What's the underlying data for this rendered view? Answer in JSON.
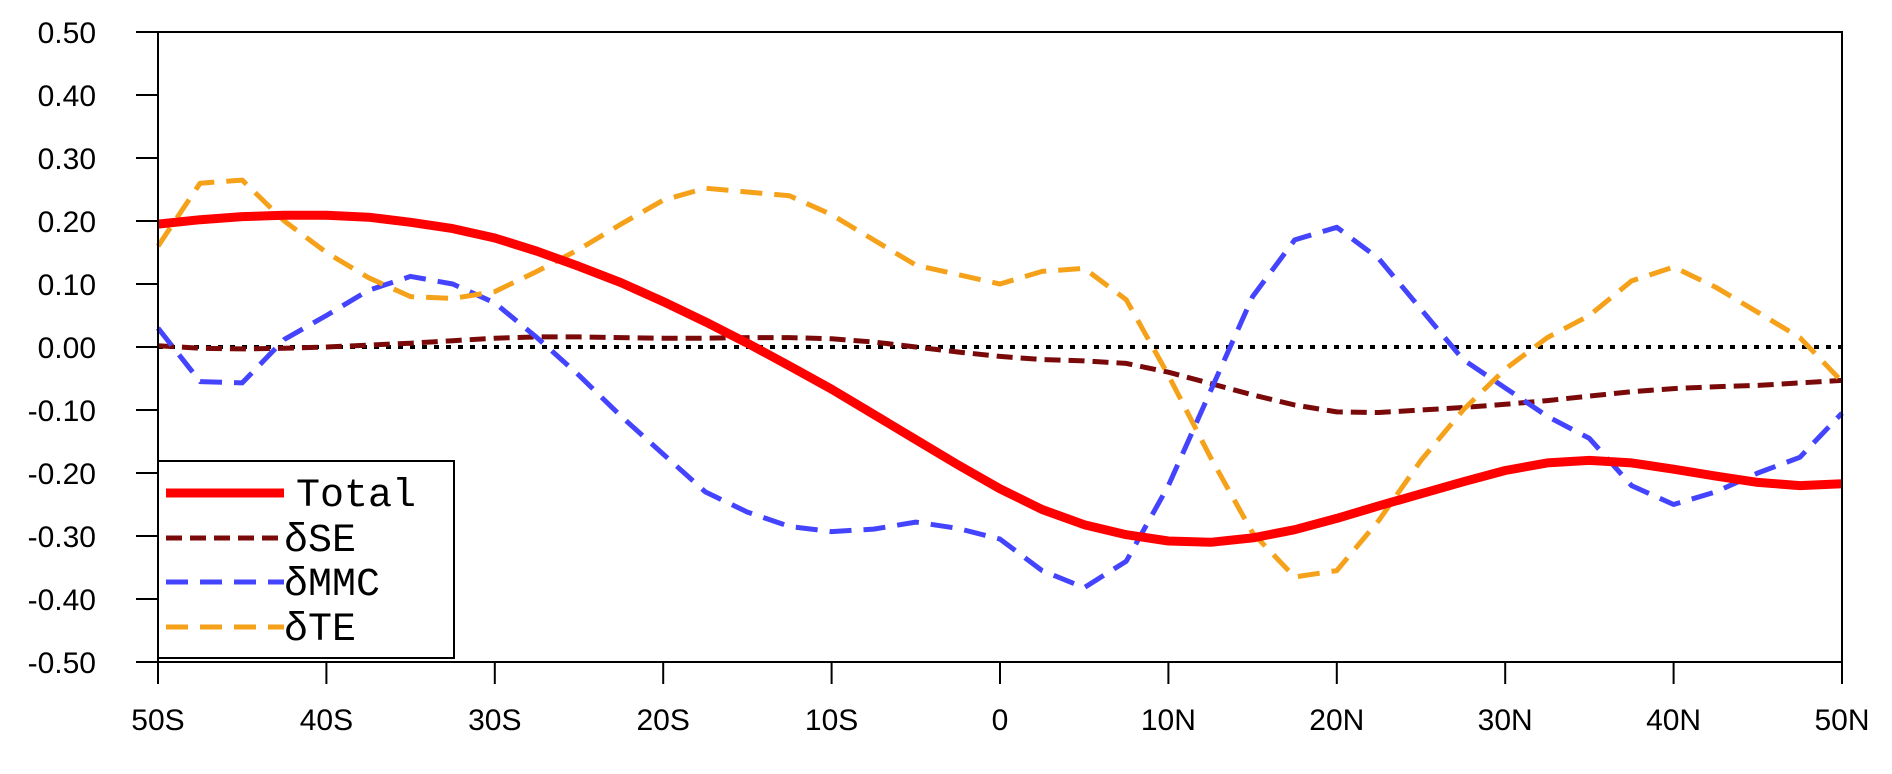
{
  "chart_data": {
    "type": "line",
    "title": "",
    "xlabel": "",
    "ylabel": "",
    "xlim": [
      -50,
      50
    ],
    "ylim": [
      -0.5,
      0.5
    ],
    "x_ticks": [
      {
        "value": -50,
        "label": "50S"
      },
      {
        "value": -40,
        "label": "40S"
      },
      {
        "value": -30,
        "label": "30S"
      },
      {
        "value": -20,
        "label": "20S"
      },
      {
        "value": -10,
        "label": "10S"
      },
      {
        "value": 0,
        "label": "0"
      },
      {
        "value": 10,
        "label": "10N"
      },
      {
        "value": 20,
        "label": "20N"
      },
      {
        "value": 30,
        "label": "30N"
      },
      {
        "value": 40,
        "label": "40N"
      },
      {
        "value": 50,
        "label": "50N"
      }
    ],
    "y_ticks": [
      {
        "value": 0.5,
        "label": "0.50"
      },
      {
        "value": 0.4,
        "label": "0.40"
      },
      {
        "value": 0.3,
        "label": "0.30"
      },
      {
        "value": 0.2,
        "label": "0.20"
      },
      {
        "value": 0.1,
        "label": "0.10"
      },
      {
        "value": 0.0,
        "label": "0.00"
      },
      {
        "value": -0.1,
        "label": "-0.10"
      },
      {
        "value": -0.2,
        "label": "-0.20"
      },
      {
        "value": -0.3,
        "label": "-0.30"
      },
      {
        "value": -0.4,
        "label": "-0.40"
      },
      {
        "value": -0.5,
        "label": "-0.50"
      }
    ],
    "zero_line": {
      "y": 0,
      "color": "#000000",
      "style": "dotted"
    },
    "legend": {
      "placement": "bottom-left"
    },
    "x": [
      -50,
      -47.5,
      -45,
      -42.5,
      -40,
      -37.5,
      -35,
      -32.5,
      -30,
      -27.5,
      -25,
      -22.5,
      -20,
      -17.5,
      -15,
      -12.5,
      -10,
      -7.5,
      -5,
      -2.5,
      0,
      2.5,
      5,
      7.5,
      10,
      12.5,
      15,
      17.5,
      20,
      22.5,
      25,
      27.5,
      30,
      32.5,
      35,
      37.5,
      40,
      42.5,
      45,
      47.5,
      50
    ],
    "series": [
      {
        "name": "Total",
        "color": "#ff0000",
        "style": "solid",
        "values": [
          0.195,
          0.202,
          0.207,
          0.209,
          0.209,
          0.206,
          0.198,
          0.188,
          0.173,
          0.152,
          0.128,
          0.102,
          0.072,
          0.04,
          0.006,
          -0.03,
          -0.067,
          -0.107,
          -0.147,
          -0.187,
          -0.225,
          -0.258,
          -0.282,
          -0.298,
          -0.308,
          -0.31,
          -0.303,
          -0.29,
          -0.272,
          -0.252,
          -0.233,
          -0.214,
          -0.196,
          -0.184,
          -0.18,
          -0.184,
          -0.194,
          -0.205,
          -0.215,
          -0.22,
          -0.217
        ]
      },
      {
        "name": "δSE",
        "color": "#7a0a0a",
        "style": "dashed",
        "values": [
          0.002,
          -0.002,
          -0.003,
          -0.002,
          0.0,
          0.003,
          0.006,
          0.01,
          0.014,
          0.016,
          0.016,
          0.015,
          0.014,
          0.014,
          0.015,
          0.015,
          0.013,
          0.008,
          0.0,
          -0.008,
          -0.015,
          -0.02,
          -0.022,
          -0.026,
          -0.04,
          -0.058,
          -0.076,
          -0.092,
          -0.103,
          -0.104,
          -0.1,
          -0.096,
          -0.091,
          -0.085,
          -0.078,
          -0.071,
          -0.066,
          -0.063,
          -0.061,
          -0.057,
          -0.053
        ]
      },
      {
        "name": "δMMC",
        "color": "#4444ff",
        "style": "dashed",
        "values": [
          0.03,
          -0.055,
          -0.057,
          0.012,
          0.05,
          0.09,
          0.112,
          0.1,
          0.07,
          0.015,
          -0.045,
          -0.11,
          -0.17,
          -0.23,
          -0.262,
          -0.285,
          -0.293,
          -0.289,
          -0.278,
          -0.288,
          -0.305,
          -0.355,
          -0.382,
          -0.34,
          -0.22,
          -0.07,
          0.08,
          0.17,
          0.19,
          0.14,
          0.06,
          -0.02,
          -0.065,
          -0.11,
          -0.145,
          -0.22,
          -0.25,
          -0.23,
          -0.2,
          -0.175,
          -0.105
        ]
      },
      {
        "name": "δTE",
        "color": "#f5a21a",
        "style": "dashed",
        "values": [
          0.16,
          0.26,
          0.265,
          0.2,
          0.15,
          0.11,
          0.08,
          0.077,
          0.088,
          0.12,
          0.155,
          0.195,
          0.233,
          0.252,
          0.246,
          0.24,
          0.21,
          0.17,
          0.13,
          0.115,
          0.1,
          0.12,
          0.125,
          0.075,
          -0.045,
          -0.175,
          -0.295,
          -0.365,
          -0.355,
          -0.275,
          -0.18,
          -0.1,
          -0.035,
          0.015,
          0.05,
          0.105,
          0.127,
          0.095,
          0.055,
          0.015,
          -0.055
        ]
      }
    ]
  }
}
